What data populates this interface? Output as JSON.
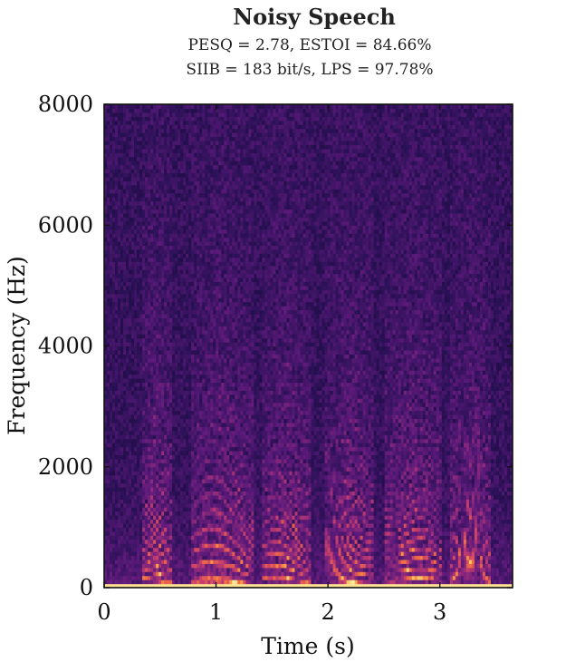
{
  "chart_data": {
    "type": "heatmap",
    "title": "Noisy Speech",
    "subtitle_lines": [
      "PESQ = 2.78, ESTOI = 84.66%",
      "SIIB = 183 bit/s, LPS = 97.78%"
    ],
    "xlabel": "Time (s)",
    "ylabel": "Frequency (Hz)",
    "xlim": [
      0,
      3.65
    ],
    "ylim": [
      0,
      8000
    ],
    "xticks": [
      0,
      1,
      2,
      3
    ],
    "xtick_labels": [
      "0",
      "1",
      "2",
      "3"
    ],
    "yticks": [
      0,
      2000,
      4000,
      6000,
      8000
    ],
    "ytick_labels": [
      "0",
      "2000",
      "4000",
      "6000",
      "8000"
    ],
    "colormap": "magma",
    "colormap_stops": [
      "#0d0829",
      "#2b1157",
      "#5c1a7a",
      "#902a7c",
      "#c83f6b",
      "#f06a45",
      "#fdb24a",
      "#fcf3b0"
    ],
    "speech_segments_s": [
      [
        0.33,
        0.62
      ],
      [
        0.78,
        1.35
      ],
      [
        1.42,
        1.85
      ],
      [
        1.98,
        2.42
      ],
      [
        2.5,
        3.02
      ],
      [
        3.08,
        3.45
      ]
    ],
    "noise_floor": "broadband background noise across all frequencies and times"
  }
}
